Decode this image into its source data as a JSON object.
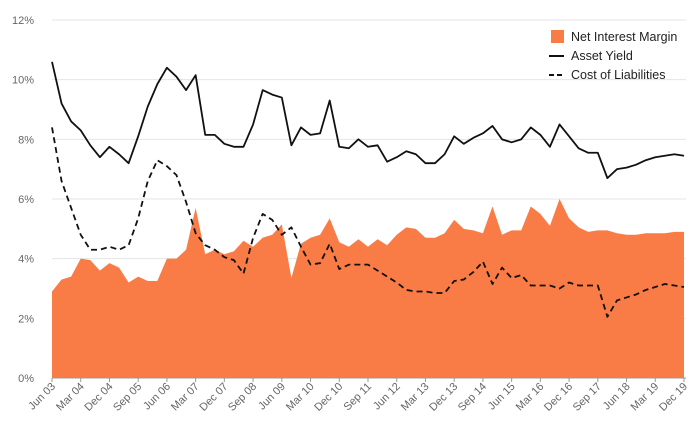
{
  "chart_data": {
    "type": "area+line",
    "title": "",
    "xlabel": "",
    "ylabel": "",
    "ylim": [
      0,
      12
    ],
    "yticks": [
      "0%",
      "2%",
      "4%",
      "6%",
      "8%",
      "10%",
      "12%"
    ],
    "xtick_labels": [
      "Jun 03",
      "Mar 04",
      "Dec 04",
      "Sep 05",
      "Jun 06",
      "Mar 07",
      "Dec 07",
      "Sep 08",
      "Jun 09",
      "Mar 10",
      "Dec 10",
      "Sep 11",
      "Jun 12",
      "Mar 13",
      "Dec 13",
      "Sep 14",
      "Jun 15",
      "Mar 16",
      "Dec 16",
      "Sep 17",
      "Jun 18",
      "Mar 19",
      "Dec 19"
    ],
    "legend": {
      "position": "top-right",
      "items": [
        {
          "label": "Net Interest Margin",
          "style": "area"
        },
        {
          "label": "Asset Yield",
          "style": "solid"
        },
        {
          "label": "Cost of Liabilities",
          "style": "dashed"
        }
      ]
    },
    "quarters": 67,
    "series": [
      {
        "name": "Net Interest Margin",
        "color": "#f97b45",
        "values": [
          2.9,
          3.3,
          3.4,
          4.0,
          3.95,
          3.6,
          3.85,
          3.7,
          3.2,
          3.4,
          3.25,
          3.25,
          4.0,
          4.0,
          4.3,
          5.7,
          4.15,
          4.3,
          4.15,
          4.25,
          4.6,
          4.4,
          4.7,
          4.8,
          5.15,
          3.35,
          4.5,
          4.7,
          4.8,
          5.35,
          4.55,
          4.4,
          4.65,
          4.4,
          4.65,
          4.45,
          4.8,
          5.05,
          5.0,
          4.7,
          4.7,
          4.85,
          5.3,
          5.0,
          4.95,
          4.85,
          5.75,
          4.8,
          4.95,
          4.95,
          5.75,
          5.5,
          5.1,
          6.0,
          5.35,
          5.05,
          4.9,
          4.95,
          4.95,
          4.85,
          4.8,
          4.8,
          4.85,
          4.85,
          4.85,
          4.9,
          4.9
        ]
      },
      {
        "name": "Asset Yield",
        "color": "#111111",
        "values": [
          10.6,
          9.2,
          8.6,
          8.3,
          7.8,
          7.4,
          7.75,
          7.5,
          7.2,
          8.1,
          9.1,
          9.85,
          10.4,
          10.1,
          9.65,
          10.15,
          8.15,
          8.15,
          7.85,
          7.75,
          7.75,
          8.5,
          9.65,
          9.5,
          9.4,
          7.8,
          8.4,
          8.15,
          8.2,
          9.3,
          7.75,
          7.7,
          8.0,
          7.75,
          7.8,
          7.25,
          7.4,
          7.6,
          7.5,
          7.2,
          7.2,
          7.5,
          8.1,
          7.85,
          8.05,
          8.2,
          8.45,
          8.0,
          7.9,
          8.0,
          8.4,
          8.15,
          7.75,
          8.5,
          8.1,
          7.7,
          7.55,
          7.55,
          6.7,
          7.0,
          7.05,
          7.15,
          7.3,
          7.4,
          7.45,
          7.5,
          7.45
        ]
      },
      {
        "name": "Cost of Liabilities",
        "color": "#111111",
        "values": [
          8.4,
          6.6,
          5.7,
          4.8,
          4.3,
          4.3,
          4.4,
          4.3,
          4.45,
          5.35,
          6.6,
          7.3,
          7.1,
          6.8,
          5.9,
          4.85,
          4.45,
          4.3,
          4.05,
          3.95,
          3.5,
          4.7,
          5.5,
          5.3,
          4.8,
          5.05,
          4.4,
          3.8,
          3.85,
          4.5,
          3.65,
          3.8,
          3.8,
          3.8,
          3.6,
          3.4,
          3.2,
          2.95,
          2.9,
          2.9,
          2.85,
          2.85,
          3.25,
          3.3,
          3.55,
          3.9,
          3.15,
          3.7,
          3.35,
          3.45,
          3.1,
          3.1,
          3.1,
          3.0,
          3.2,
          3.1,
          3.1,
          3.1,
          2.05,
          2.6,
          2.7,
          2.8,
          2.95,
          3.05,
          3.15,
          3.1,
          3.05
        ]
      }
    ]
  }
}
